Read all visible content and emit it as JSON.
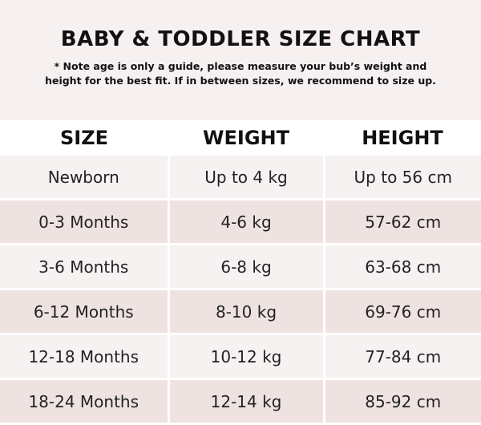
{
  "title": "BABY & TODDLER SIZE CHART",
  "note_line1": "* Note age is only a guide, please measure your bub’s weight and",
  "note_line2": "height for the best fit. If in between sizes, we recommend to size up.",
  "colors": {
    "header_band": "#f6f1f0",
    "row_light": "#f6f2f1",
    "row_pink": "#efe3e2"
  },
  "table": {
    "headers": [
      "SIZE",
      "WEIGHT",
      "HEIGHT"
    ],
    "rows": [
      [
        "Newborn",
        "Up to 4 kg",
        "Up to 56 cm"
      ],
      [
        "0-3 Months",
        "4-6 kg",
        "57-62 cm"
      ],
      [
        "3-6 Months",
        "6-8 kg",
        "63-68 cm"
      ],
      [
        "6-12 Months",
        "8-10 kg",
        "69-76 cm"
      ],
      [
        "12-18 Months",
        "10-12 kg",
        "77-84 cm"
      ],
      [
        "18-24 Months",
        "12-14 kg",
        "85-92 cm"
      ]
    ]
  }
}
